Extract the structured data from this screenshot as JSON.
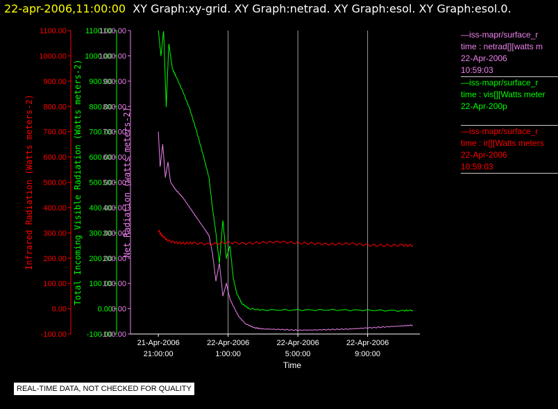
{
  "header": {
    "timestamp": "22-apr-2006,11:00:00",
    "titles": "XY Graph:xy-grid.  XY Graph:netrad.  XY Graph:esol.  XY Graph:esol.0."
  },
  "legend": [
    {
      "line1": "—iss-mapr/surface_r",
      "line2": "time : netrad[][watts m",
      "line3": "22-Apr-2006",
      "line4": "10:59:03",
      "color": "#ee82ee"
    },
    {
      "line1": "—iss-mapr/surface_r",
      "line2": "time : vis[][Watts meter",
      "line3": "22-Apr-200p",
      "line4": "",
      "color": "#00ff00"
    },
    {
      "line1": "—iss-mapr/surface_r",
      "line2": "time : ir[][Watts meters",
      "line3": "22-Apr-2006",
      "line4": "10:59:03",
      "color": "#ff0000"
    }
  ],
  "notice": "REAL-TIME DATA, NOT CHECKED FOR QUALITY",
  "chart_data": {
    "type": "line",
    "xlabel": "Time",
    "x_ticks": [
      {
        "l1": "21-Apr-2006",
        "l2": "21:00:00",
        "h": 21
      },
      {
        "l1": "22-Apr-2006",
        "l2": "1:00:00",
        "h": 25
      },
      {
        "l1": "22-Apr-2006",
        "l2": "5:00:00",
        "h": 29
      },
      {
        "l1": "22-Apr-2006",
        "l2": "9:00:00",
        "h": 33
      }
    ],
    "xlim_hours": [
      19.4,
      36.0
    ],
    "grid_verticals_hours": [
      25,
      29,
      33
    ],
    "axes": [
      {
        "id": "ir",
        "label": "Infrared Radiation (Watts meters-2)",
        "color": "#ff0000",
        "ylim": [
          -100,
          1100
        ],
        "ticks": [
          "-100.00",
          "0.00",
          "100.00",
          "200.00",
          "300.00",
          "400.00",
          "500.00",
          "600.00",
          "700.00",
          "800.00",
          "900.00",
          "1000.00",
          "1100.00"
        ]
      },
      {
        "id": "vis",
        "label": "Total Incoming Visible Radiation (Watts meters-2)",
        "color": "#00ff00",
        "ylim": [
          -100,
          1100
        ],
        "ticks": [
          "-100.00",
          "0.00",
          "100.00",
          "200.00",
          "300.00",
          "400.00",
          "500.00",
          "600.00",
          "700.00",
          "800.00",
          "900.00",
          "1000.00",
          "1100.00"
        ]
      },
      {
        "id": "netrad",
        "label": "Net Radiation (watts meters-2)",
        "color": "#ee82ee",
        "ylim": [
          -100,
          1100
        ],
        "ticks": [
          "-100.00",
          "0.00",
          "100.00",
          "200.00",
          "300.00",
          "400.00",
          "500.00",
          "600.00",
          "700.00",
          "800.00",
          "900.00",
          "1000.00",
          "1100.00"
        ]
      }
    ],
    "series": [
      {
        "name": "vis",
        "color": "#00ff00",
        "noise": 3,
        "points": [
          [
            21.0,
            1100
          ],
          [
            21.15,
            1000
          ],
          [
            21.3,
            1100
          ],
          [
            21.45,
            800
          ],
          [
            21.6,
            1050
          ],
          [
            21.8,
            950
          ],
          [
            22.0,
            920
          ],
          [
            22.4,
            860
          ],
          [
            22.8,
            790
          ],
          [
            23.2,
            700
          ],
          [
            23.6,
            600
          ],
          [
            23.9,
            520
          ],
          [
            24.1,
            400
          ],
          [
            24.3,
            300
          ],
          [
            24.5,
            180
          ],
          [
            24.7,
            350
          ],
          [
            24.9,
            200
          ],
          [
            25.1,
            250
          ],
          [
            25.3,
            120
          ],
          [
            25.5,
            60
          ],
          [
            25.8,
            20
          ],
          [
            26.2,
            0
          ],
          [
            27.0,
            -5
          ],
          [
            29.0,
            -5
          ],
          [
            31.0,
            -5
          ],
          [
            33.0,
            -6
          ],
          [
            35.0,
            -8
          ],
          [
            35.6,
            -6
          ]
        ]
      },
      {
        "name": "netrad",
        "color": "#ee82ee",
        "noise": 2,
        "points": [
          [
            21.0,
            700
          ],
          [
            21.1,
            560
          ],
          [
            21.25,
            650
          ],
          [
            21.4,
            520
          ],
          [
            21.55,
            580
          ],
          [
            21.7,
            500
          ],
          [
            22.0,
            470
          ],
          [
            22.4,
            440
          ],
          [
            22.8,
            400
          ],
          [
            23.2,
            360
          ],
          [
            23.6,
            320
          ],
          [
            23.9,
            290
          ],
          [
            24.1,
            220
          ],
          [
            24.3,
            110
          ],
          [
            24.5,
            180
          ],
          [
            24.7,
            50
          ],
          [
            24.9,
            100
          ],
          [
            25.1,
            40
          ],
          [
            25.3,
            10
          ],
          [
            25.6,
            -30
          ],
          [
            26.0,
            -60
          ],
          [
            26.5,
            -75
          ],
          [
            27.0,
            -80
          ],
          [
            28.0,
            -82
          ],
          [
            29.0,
            -85
          ],
          [
            30.0,
            -84
          ],
          [
            31.0,
            -82
          ],
          [
            32.0,
            -80
          ],
          [
            33.0,
            -76
          ],
          [
            34.0,
            -72
          ],
          [
            35.0,
            -68
          ],
          [
            35.6,
            -65
          ]
        ]
      },
      {
        "name": "ir",
        "color": "#ff0000",
        "noise": 5,
        "points": [
          [
            21.0,
            310
          ],
          [
            21.2,
            290
          ],
          [
            21.5,
            270
          ],
          [
            22.0,
            262
          ],
          [
            22.5,
            258
          ],
          [
            23.0,
            260
          ],
          [
            24.0,
            255
          ],
          [
            25.0,
            262
          ],
          [
            26.0,
            258
          ],
          [
            27.0,
            262
          ],
          [
            28.0,
            265
          ],
          [
            29.0,
            260
          ],
          [
            30.0,
            258
          ],
          [
            31.0,
            255
          ],
          [
            32.0,
            258
          ],
          [
            33.0,
            252
          ],
          [
            34.0,
            250
          ],
          [
            35.0,
            252
          ],
          [
            35.6,
            250
          ]
        ]
      }
    ]
  }
}
